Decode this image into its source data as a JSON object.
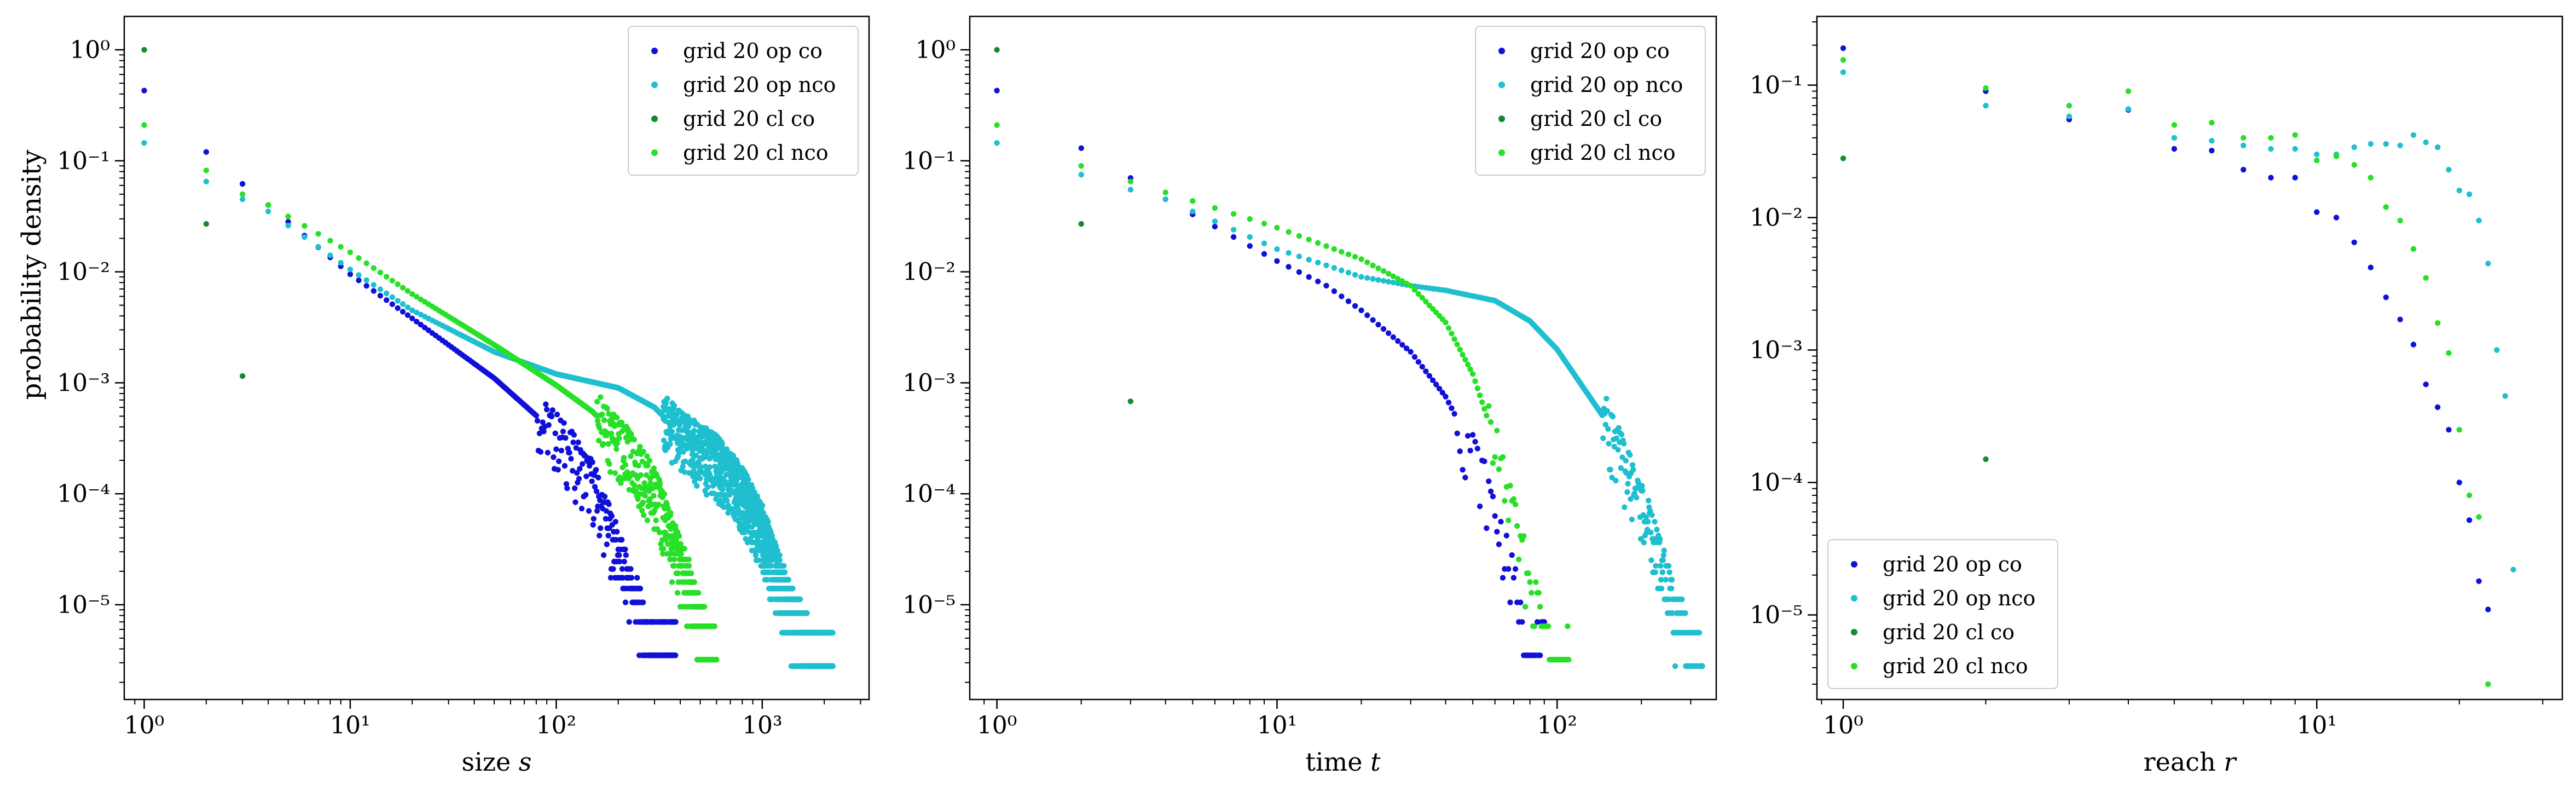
{
  "figure": {
    "ylabel": "probability density"
  },
  "legend_labels": [
    "grid 20 op co",
    "grid 20 op nco",
    "grid 20 cl co",
    "grid 20 cl nco"
  ],
  "series_colors": [
    "#1010d8",
    "#1fbfcf",
    "#148a2c",
    "#27e027"
  ],
  "chart_data": [
    {
      "type": "scatter",
      "xlabel_main": "size ",
      "xlabel_var": "s",
      "xscale": "log",
      "yscale": "log",
      "xlim": [
        0.8,
        3300
      ],
      "ylim": [
        1.4e-06,
        2.0
      ],
      "xticks": [
        1,
        10,
        100,
        1000
      ],
      "yticks": [
        1e-05,
        0.0001,
        0.001,
        0.01,
        0.1,
        1
      ],
      "legend_position": "upper right",
      "series": [
        {
          "name": "grid 20 op co",
          "color": "#1010d8",
          "knots": [
            [
              1,
              0.43
            ],
            [
              2,
              0.12
            ],
            [
              3,
              0.062
            ],
            [
              4,
              0.04
            ],
            [
              10,
              0.0095
            ],
            [
              20,
              0.0038
            ],
            [
              50,
              0.0011
            ],
            [
              100,
              0.00035
            ],
            [
              150,
              0.00013
            ],
            [
              200,
              3e-05
            ],
            [
              300,
              4e-06
            ]
          ],
          "floor": 3.5e-06,
          "xmax": 380
        },
        {
          "name": "grid 20 op nco",
          "color": "#1fbfcf",
          "knots": [
            [
              1,
              0.145
            ],
            [
              2,
              0.065
            ],
            [
              3,
              0.045
            ],
            [
              4,
              0.035
            ],
            [
              10,
              0.0105
            ],
            [
              20,
              0.0045
            ],
            [
              50,
              0.0019
            ],
            [
              100,
              0.0012
            ],
            [
              200,
              0.0009
            ],
            [
              300,
              0.0006
            ],
            [
              400,
              0.00035
            ],
            [
              600,
              0.00021
            ],
            [
              800,
              0.00011
            ],
            [
              1000,
              5e-05
            ],
            [
              1300,
              1.2e-05
            ],
            [
              1700,
              4e-06
            ],
            [
              2200,
              2.8e-06
            ]
          ],
          "floor": 2.8e-06,
          "xmax": 2200
        },
        {
          "name": "grid 20 cl co",
          "color": "#148a2c",
          "points": [
            [
              1,
              1.0
            ],
            [
              2,
              0.027
            ],
            [
              3,
              0.00115
            ]
          ]
        },
        {
          "name": "grid 20 cl nco",
          "color": "#27e027",
          "knots": [
            [
              1,
              0.21
            ],
            [
              2,
              0.082
            ],
            [
              3,
              0.05
            ],
            [
              4,
              0.04
            ],
            [
              10,
              0.015
            ],
            [
              20,
              0.0063
            ],
            [
              50,
              0.0022
            ],
            [
              100,
              0.00095
            ],
            [
              150,
              0.00055
            ],
            [
              200,
              0.00032
            ],
            [
              300,
              0.00011
            ],
            [
              400,
              2.5e-05
            ],
            [
              600,
              3e-06
            ]
          ],
          "floor": 3.2e-06,
          "xmax": 600
        }
      ]
    },
    {
      "type": "scatter",
      "xlabel_main": "time ",
      "xlabel_var": "t",
      "xscale": "log",
      "yscale": "log",
      "xlim": [
        0.8,
        370
      ],
      "ylim": [
        1.4e-06,
        2.0
      ],
      "xticks": [
        1,
        10,
        100
      ],
      "yticks": [
        1e-05,
        0.0001,
        0.001,
        0.01,
        0.1,
        1
      ],
      "legend_position": "upper right",
      "series": [
        {
          "name": "grid 20 op co",
          "color": "#1010d8",
          "knots": [
            [
              1,
              0.43
            ],
            [
              2,
              0.13
            ],
            [
              3,
              0.07
            ],
            [
              4,
              0.045
            ],
            [
              10,
              0.0125
            ],
            [
              15,
              0.0075
            ],
            [
              20,
              0.0045
            ],
            [
              30,
              0.0019
            ],
            [
              40,
              0.00075
            ],
            [
              50,
              0.00025
            ],
            [
              60,
              7e-05
            ],
            [
              70,
              1.5e-05
            ],
            [
              80,
              4e-06
            ]
          ],
          "floor": 3.5e-06,
          "xmax": 90
        },
        {
          "name": "grid 20 op nco",
          "color": "#1fbfcf",
          "knots": [
            [
              1,
              0.145
            ],
            [
              2,
              0.075
            ],
            [
              3,
              0.055
            ],
            [
              4,
              0.045
            ],
            [
              10,
              0.016
            ],
            [
              20,
              0.009
            ],
            [
              30,
              0.0075
            ],
            [
              40,
              0.0068
            ],
            [
              60,
              0.0055
            ],
            [
              80,
              0.0036
            ],
            [
              100,
              0.002
            ],
            [
              150,
              0.00045
            ],
            [
              200,
              8.5e-05
            ],
            [
              250,
              1.5e-05
            ],
            [
              300,
              3.5e-06
            ]
          ],
          "floor": 2.8e-06,
          "xmax": 330
        },
        {
          "name": "grid 20 cl co",
          "color": "#148a2c",
          "points": [
            [
              1,
              1.0
            ],
            [
              2,
              0.027
            ],
            [
              3,
              0.00068
            ]
          ]
        },
        {
          "name": "grid 20 cl nco",
          "color": "#27e027",
          "knots": [
            [
              1,
              0.21
            ],
            [
              2,
              0.09
            ],
            [
              3,
              0.065
            ],
            [
              4,
              0.052
            ],
            [
              10,
              0.025
            ],
            [
              20,
              0.013
            ],
            [
              30,
              0.0075
            ],
            [
              40,
              0.0035
            ],
            [
              50,
              0.0012
            ],
            [
              60,
              0.0003
            ],
            [
              70,
              6e-05
            ],
            [
              80,
              1.5e-05
            ],
            [
              95,
              4e-06
            ]
          ],
          "floor": 3.2e-06,
          "xmax": 110
        }
      ]
    },
    {
      "type": "scatter",
      "xlabel_main": "reach ",
      "xlabel_var": "r",
      "xscale": "log",
      "yscale": "log",
      "xlim": [
        0.88,
        33
      ],
      "ylim": [
        2.3e-06,
        0.33
      ],
      "xticks": [
        1,
        10
      ],
      "yticks": [
        1e-05,
        0.0001,
        0.001,
        0.01,
        0.1
      ],
      "legend_position": "lower left",
      "series": [
        {
          "name": "grid 20 op co",
          "color": "#1010d8",
          "points": [
            [
              1,
              0.19
            ],
            [
              2,
              0.09
            ],
            [
              3,
              0.055
            ],
            [
              4,
              0.065
            ],
            [
              5,
              0.033
            ],
            [
              6,
              0.032
            ],
            [
              7,
              0.023
            ],
            [
              8,
              0.02
            ],
            [
              9,
              0.02
            ],
            [
              10,
              0.011
            ],
            [
              11,
              0.01
            ],
            [
              12,
              0.0065
            ],
            [
              13,
              0.0042
            ],
            [
              14,
              0.0025
            ],
            [
              15,
              0.0017
            ],
            [
              16,
              0.0011
            ],
            [
              17,
              0.00055
            ],
            [
              18,
              0.00037
            ],
            [
              19,
              0.00025
            ],
            [
              20,
              0.0001
            ],
            [
              21,
              5.2e-05
            ],
            [
              22,
              1.8e-05
            ],
            [
              23,
              1.1e-05
            ]
          ]
        },
        {
          "name": "grid 20 op nco",
          "color": "#1fbfcf",
          "points": [
            [
              1,
              0.125
            ],
            [
              2,
              0.07
            ],
            [
              3,
              0.058
            ],
            [
              4,
              0.066
            ],
            [
              5,
              0.04
            ],
            [
              6,
              0.038
            ],
            [
              7,
              0.035
            ],
            [
              8,
              0.033
            ],
            [
              9,
              0.033
            ],
            [
              10,
              0.03
            ],
            [
              11,
              0.03
            ],
            [
              12,
              0.034
            ],
            [
              13,
              0.036
            ],
            [
              14,
              0.036
            ],
            [
              15,
              0.035
            ],
            [
              16,
              0.042
            ],
            [
              17,
              0.037
            ],
            [
              18,
              0.034
            ],
            [
              19,
              0.023
            ],
            [
              20,
              0.016
            ],
            [
              21,
              0.015
            ],
            [
              22,
              0.0095
            ],
            [
              23,
              0.0045
            ],
            [
              24,
              0.001
            ],
            [
              25,
              0.00045
            ],
            [
              26,
              2.2e-05
            ]
          ]
        },
        {
          "name": "grid 20 cl co",
          "color": "#148a2c",
          "points": [
            [
              1,
              0.028
            ],
            [
              2,
              0.00015
            ]
          ]
        },
        {
          "name": "grid 20 cl nco",
          "color": "#27e027",
          "points": [
            [
              1,
              0.155
            ],
            [
              2,
              0.095
            ],
            [
              3,
              0.07
            ],
            [
              4,
              0.09
            ],
            [
              5,
              0.05
            ],
            [
              6,
              0.052
            ],
            [
              7,
              0.04
            ],
            [
              8,
              0.04
            ],
            [
              9,
              0.042
            ],
            [
              10,
              0.027
            ],
            [
              11,
              0.029
            ],
            [
              12,
              0.025
            ],
            [
              13,
              0.02
            ],
            [
              14,
              0.012
            ],
            [
              15,
              0.0095
            ],
            [
              16,
              0.0058
            ],
            [
              17,
              0.0035
            ],
            [
              18,
              0.0016
            ],
            [
              19,
              0.00095
            ],
            [
              20,
              0.00025
            ],
            [
              21,
              8e-05
            ],
            [
              22,
              5.5e-05
            ],
            [
              23,
              3e-06
            ]
          ]
        }
      ]
    }
  ]
}
